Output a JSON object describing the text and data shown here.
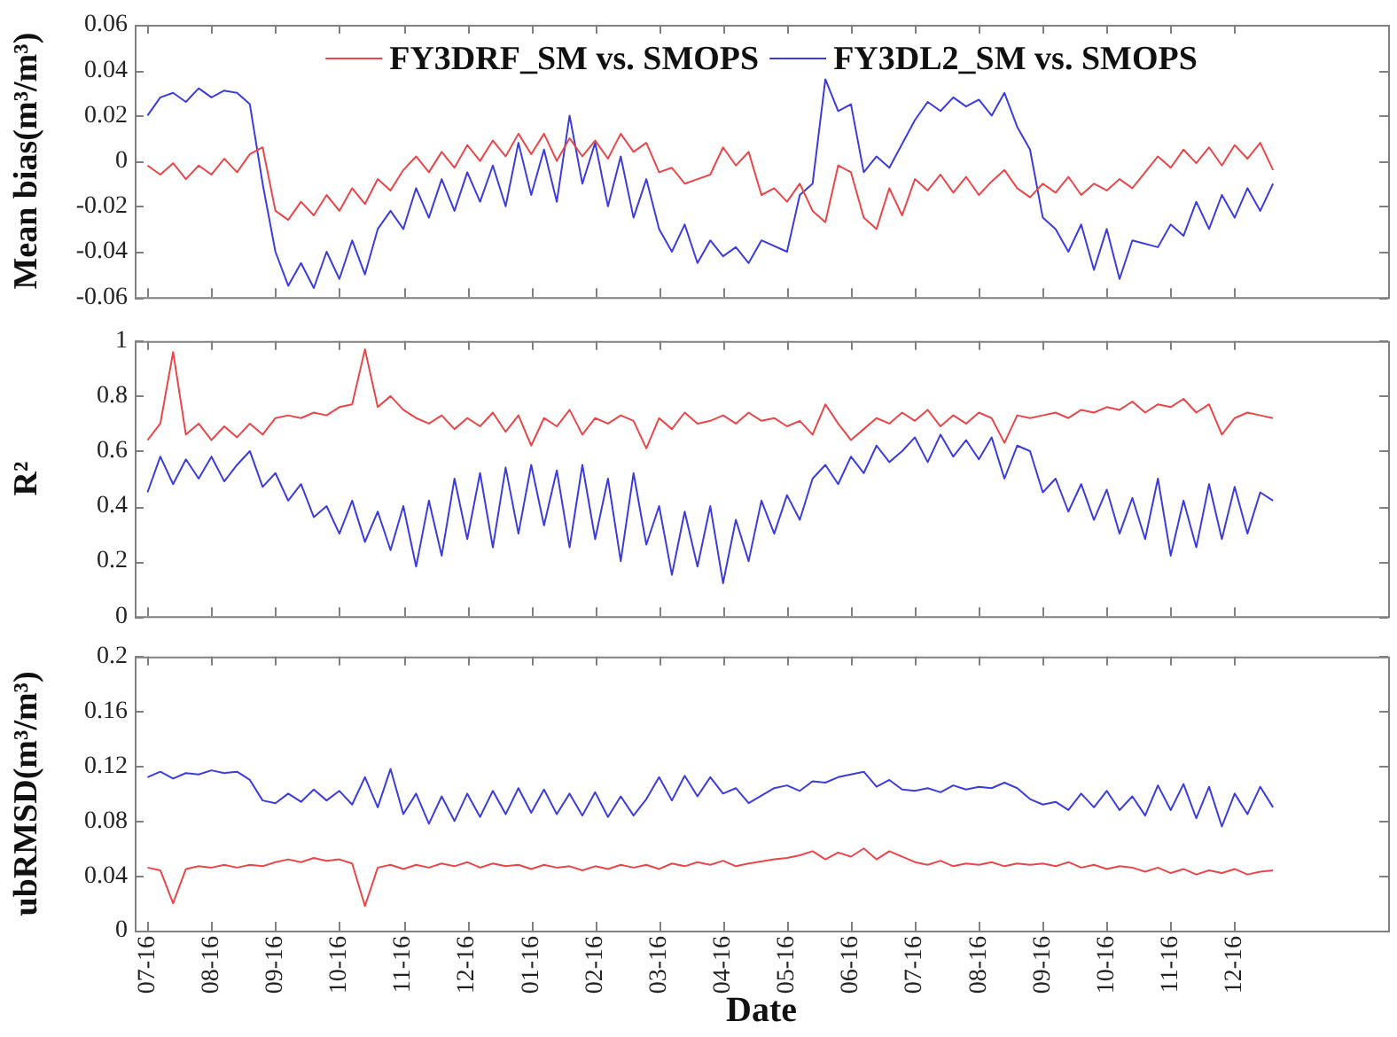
{
  "chart_data": [
    {
      "type": "line",
      "ylabel": "Mean bias(m³/m³)",
      "legend": "top",
      "marker": "none",
      "tick_labels": "y",
      "categories": [
        null,
        null,
        null,
        null,
        null,
        null,
        null,
        null,
        null,
        null,
        null,
        null,
        null,
        null,
        null,
        null,
        null,
        null,
        null,
        null,
        null,
        null,
        null,
        null,
        null,
        null,
        null,
        null,
        null,
        null,
        null,
        null,
        null,
        null,
        null,
        null,
        null,
        null,
        null,
        null,
        null,
        null,
        null,
        null,
        null,
        null,
        null,
        null,
        null,
        null,
        null,
        null,
        null,
        null,
        null,
        null,
        null,
        null,
        null,
        null,
        null,
        null,
        null,
        null,
        null,
        null,
        null,
        null,
        null,
        null,
        null,
        null,
        null,
        null,
        null,
        null,
        null,
        null,
        null,
        null,
        null,
        null,
        null,
        null,
        null,
        null,
        null,
        null,
        null,
        null,
        null,
        null,
        null,
        null,
        null,
        null,
        null,
        null,
        null
      ],
      "ylim": [
        -0.06,
        0.06
      ],
      "yticks": [
        -0.06,
        -0.04,
        -0.02,
        0,
        0.02,
        0.04,
        0.06
      ],
      "series": [
        {
          "name": "FY3DRF_SM vs. SMOPS",
          "color": "#e8474a",
          "values": [
            null,
            -0.002,
            -0.006,
            -0.001,
            -0.008,
            -0.002,
            -0.006,
            0.001,
            -0.005,
            0.003,
            0.006,
            -0.022,
            -0.026,
            -0.018,
            -0.024,
            -0.015,
            -0.022,
            -0.012,
            -0.019,
            -0.008,
            -0.013,
            -0.004,
            0.002,
            -0.005,
            0.004,
            -0.003,
            0.007,
            0.0,
            0.009,
            0.002,
            0.012,
            0.003,
            0.012,
            0.0,
            0.01,
            0.002,
            0.009,
            0.001,
            0.012,
            0.004,
            0.008,
            -0.005,
            -0.003,
            -0.01,
            -0.008,
            -0.006,
            0.006,
            -0.002,
            0.004,
            -0.015,
            -0.012,
            -0.018,
            -0.01,
            -0.022,
            -0.027,
            -0.002,
            -0.005,
            -0.025,
            -0.03,
            -0.012,
            -0.024,
            -0.008,
            -0.013,
            -0.006,
            -0.014,
            -0.007,
            -0.015,
            -0.009,
            -0.004,
            -0.012,
            -0.016,
            -0.01,
            -0.014,
            -0.007,
            -0.015,
            -0.01,
            -0.013,
            -0.008,
            -0.012,
            null,
            0.002,
            -0.003,
            0.005,
            -0.001,
            0.006,
            -0.002,
            0.007,
            0.001,
            0.008,
            -0.004,
            null,
            null,
            null,
            null,
            null,
            null,
            null,
            null,
            null
          ]
        },
        {
          "name": "FY3DL2_SM vs. SMOPS",
          "color": "#3c3cdc",
          "values": [
            null,
            0.02,
            0.028,
            0.03,
            0.026,
            0.032,
            0.028,
            0.031,
            0.03,
            0.025,
            -0.01,
            -0.04,
            -0.055,
            -0.045,
            -0.056,
            -0.04,
            -0.052,
            -0.035,
            -0.05,
            -0.03,
            -0.022,
            -0.03,
            -0.012,
            -0.025,
            -0.008,
            -0.022,
            -0.005,
            -0.018,
            -0.002,
            -0.02,
            0.008,
            -0.015,
            0.005,
            -0.018,
            0.02,
            -0.01,
            0.008,
            -0.02,
            0.002,
            -0.025,
            -0.008,
            -0.03,
            -0.04,
            -0.028,
            -0.045,
            -0.035,
            -0.042,
            -0.038,
            -0.045,
            -0.035,
            null,
            -0.04,
            -0.015,
            -0.01,
            0.036,
            0.022,
            0.025,
            -0.005,
            0.002,
            -0.003,
            null,
            0.018,
            0.026,
            0.022,
            0.028,
            0.024,
            0.027,
            0.02,
            0.03,
            0.015,
            0.005,
            -0.025,
            -0.03,
            -0.04,
            -0.028,
            -0.048,
            -0.03,
            -0.052,
            -0.035,
            null,
            -0.038,
            -0.028,
            -0.033,
            -0.018,
            -0.03,
            -0.015,
            -0.025,
            -0.012,
            -0.022,
            -0.01,
            null,
            null,
            null,
            null,
            null,
            null,
            null,
            null,
            null
          ]
        }
      ]
    },
    {
      "type": "line",
      "ylabel": "R²",
      "marker": "none",
      "tick_labels": "y",
      "categories": [
        null,
        null,
        null,
        null,
        null,
        null,
        null,
        null,
        null,
        null,
        null,
        null,
        null,
        null,
        null,
        null,
        null,
        null,
        null,
        null,
        null,
        null,
        null,
        null,
        null,
        null,
        null,
        null,
        null,
        null,
        null,
        null,
        null,
        null,
        null,
        null,
        null,
        null,
        null,
        null,
        null,
        null,
        null,
        null,
        null,
        null,
        null,
        null,
        null,
        null,
        null,
        null,
        null,
        null,
        null,
        null,
        null,
        null,
        null,
        null,
        null,
        null,
        null,
        null,
        null,
        null,
        null,
        null,
        null,
        null,
        null,
        null,
        null,
        null,
        null,
        null,
        null,
        null,
        null,
        null,
        null,
        null,
        null,
        null,
        null,
        null,
        null,
        null,
        null,
        null,
        null,
        null,
        null,
        null,
        null,
        null,
        null,
        null,
        null
      ],
      "ylim": [
        0,
        1
      ],
      "yticks": [
        0,
        0.2,
        0.4,
        0.6,
        0.8,
        1
      ],
      "series": [
        {
          "color": "#e8474a",
          "values": [
            null,
            0.64,
            0.7,
            0.96,
            0.66,
            0.7,
            0.64,
            0.69,
            0.65,
            0.7,
            0.66,
            0.72,
            0.73,
            0.72,
            0.74,
            0.73,
            0.76,
            0.77,
            0.97,
            0.76,
            0.8,
            0.75,
            0.72,
            0.7,
            0.73,
            0.68,
            0.72,
            0.69,
            0.74,
            0.67,
            0.73,
            0.62,
            0.72,
            0.69,
            0.75,
            0.66,
            0.72,
            0.7,
            0.73,
            0.71,
            0.61,
            0.72,
            0.68,
            0.74,
            0.7,
            0.71,
            0.73,
            0.7,
            0.74,
            0.71,
            0.72,
            0.69,
            0.71,
            0.66,
            0.77,
            0.7,
            0.64,
            0.68,
            0.72,
            0.7,
            0.74,
            0.71,
            0.75,
            0.69,
            0.73,
            0.7,
            0.74,
            0.72,
            0.63,
            0.73,
            0.72,
            0.73,
            0.74,
            0.72,
            0.75,
            0.74,
            0.76,
            0.75,
            0.78,
            0.74,
            0.77,
            0.76,
            0.79,
            0.74,
            0.77,
            0.66,
            0.72,
            0.74,
            0.73,
            0.72,
            null,
            null,
            null,
            null,
            null,
            null,
            null,
            null,
            null
          ]
        },
        {
          "color": "#3c3cdc",
          "values": [
            null,
            0.45,
            0.58,
            0.48,
            0.57,
            0.5,
            0.58,
            0.49,
            0.55,
            0.6,
            0.47,
            0.52,
            0.42,
            0.48,
            0.36,
            0.4,
            0.3,
            0.42,
            0.27,
            0.38,
            0.24,
            0.4,
            0.18,
            0.42,
            0.22,
            0.5,
            0.28,
            0.52,
            0.25,
            0.54,
            0.3,
            0.55,
            0.33,
            0.53,
            0.25,
            0.55,
            0.28,
            0.5,
            0.2,
            0.52,
            0.26,
            0.4,
            0.15,
            0.38,
            0.18,
            0.4,
            0.12,
            0.35,
            0.2,
            0.42,
            0.3,
            0.44,
            0.35,
            0.5,
            0.55,
            0.48,
            0.58,
            0.52,
            0.62,
            0.56,
            0.6,
            0.65,
            0.56,
            0.66,
            0.58,
            0.64,
            0.57,
            0.65,
            0.5,
            0.62,
            0.6,
            0.45,
            0.5,
            0.38,
            0.48,
            0.35,
            0.46,
            0.3,
            0.43,
            0.28,
            0.5,
            0.22,
            0.42,
            0.25,
            0.48,
            0.28,
            0.47,
            0.3,
            0.45,
            0.42,
            null,
            null,
            null,
            null,
            null,
            null,
            null,
            null,
            null
          ]
        }
      ]
    },
    {
      "type": "line",
      "ylabel": "ubRMSD(m³/m³)",
      "xlabel": "Date",
      "marker": "none",
      "categories": [
        null,
        "07-16",
        null,
        null,
        null,
        null,
        "08-16",
        null,
        null,
        null,
        null,
        "09-16",
        null,
        null,
        null,
        null,
        "10-16",
        null,
        null,
        null,
        null,
        "11-16",
        null,
        null,
        null,
        null,
        "12-16",
        null,
        null,
        null,
        null,
        "01-16",
        null,
        null,
        null,
        null,
        "02-16",
        null,
        null,
        null,
        null,
        "03-16",
        null,
        null,
        null,
        null,
        "04-16",
        null,
        null,
        null,
        null,
        "05-16",
        null,
        null,
        null,
        null,
        "06-16",
        null,
        null,
        null,
        null,
        "07-16",
        null,
        null,
        null,
        null,
        "08-16",
        null,
        null,
        null,
        null,
        "09-16",
        null,
        null,
        null,
        null,
        "10-16",
        null,
        null,
        null,
        null,
        "11-16",
        null,
        null,
        null,
        null,
        "12-16",
        null,
        null,
        null,
        null,
        null,
        null,
        null,
        null,
        null,
        null,
        null,
        null
      ],
      "ylim": [
        0,
        0.2
      ],
      "yticks": [
        0,
        0.04,
        0.08,
        0.12,
        0.16,
        0.2
      ],
      "series": [
        {
          "color": "#e8474a",
          "values": [
            null,
            0.046,
            0.044,
            0.02,
            0.045,
            0.047,
            0.046,
            0.048,
            0.046,
            0.048,
            0.047,
            0.05,
            0.052,
            0.05,
            0.053,
            0.051,
            0.052,
            0.049,
            0.018,
            0.046,
            0.048,
            0.045,
            0.048,
            0.046,
            0.049,
            0.047,
            0.05,
            0.046,
            0.049,
            0.047,
            0.048,
            0.045,
            0.048,
            0.046,
            0.047,
            0.044,
            0.047,
            0.045,
            0.048,
            0.046,
            0.048,
            0.045,
            0.049,
            0.047,
            0.05,
            0.048,
            0.051,
            0.047,
            0.049,
            null,
            0.052,
            0.053,
            0.055,
            0.058,
            0.052,
            0.057,
            0.054,
            0.06,
            0.052,
            0.058,
            null,
            0.05,
            0.048,
            0.051,
            0.047,
            0.049,
            0.048,
            0.05,
            0.047,
            0.049,
            0.048,
            0.049,
            0.047,
            0.05,
            0.046,
            0.048,
            0.045,
            0.047,
            0.046,
            0.043,
            0.046,
            0.042,
            0.045,
            0.041,
            0.044,
            0.042,
            0.045,
            0.041,
            0.043,
            0.044,
            null,
            null,
            null,
            null,
            null,
            null,
            null,
            null,
            null
          ]
        },
        {
          "color": "#3c3cdc",
          "values": [
            null,
            0.112,
            0.116,
            0.111,
            0.115,
            0.114,
            0.117,
            0.115,
            0.116,
            0.11,
            0.095,
            0.093,
            0.1,
            0.094,
            0.103,
            0.095,
            0.102,
            0.092,
            0.112,
            0.09,
            0.118,
            0.085,
            0.1,
            0.078,
            0.098,
            0.08,
            0.1,
            0.083,
            0.102,
            0.085,
            0.104,
            0.086,
            0.103,
            0.085,
            0.1,
            0.084,
            0.101,
            0.083,
            0.098,
            0.084,
            0.096,
            0.112,
            0.095,
            0.113,
            0.098,
            0.112,
            0.1,
            0.104,
            0.093,
            null,
            0.104,
            0.106,
            0.102,
            0.109,
            0.108,
            0.112,
            0.114,
            0.116,
            0.105,
            0.11,
            0.103,
            0.102,
            0.104,
            0.101,
            0.106,
            0.103,
            0.105,
            0.104,
            0.108,
            0.104,
            0.096,
            0.092,
            0.094,
            0.088,
            0.1,
            0.09,
            0.102,
            0.088,
            0.098,
            0.084,
            0.106,
            0.088,
            0.107,
            0.082,
            0.105,
            0.076,
            0.1,
            0.085,
            0.105,
            0.09,
            null,
            null,
            null,
            null,
            null,
            null,
            null,
            null,
            null
          ]
        }
      ]
    }
  ]
}
